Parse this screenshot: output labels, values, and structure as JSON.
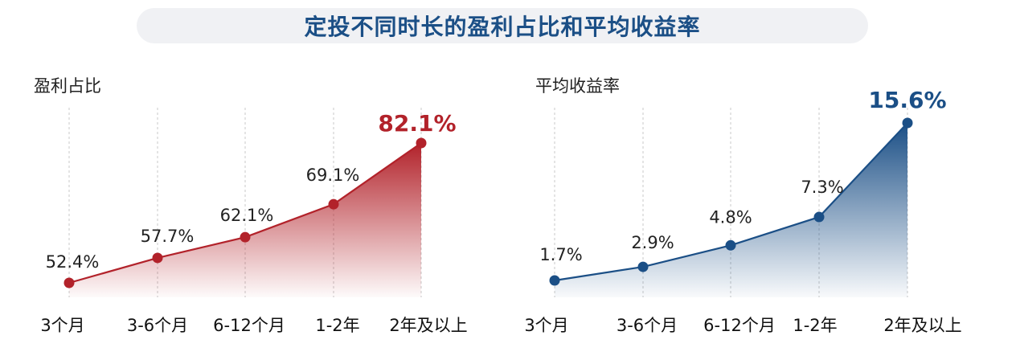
{
  "header": {
    "title": "定投不同时长的盈利占比和平均收益率"
  },
  "colors": {
    "title": "#1b4f86",
    "title_bg": "#f0f1f4",
    "left_series": "#b2222a",
    "right_series": "#1b4f86",
    "gridline": "#c8c8c8"
  },
  "chart_data": [
    {
      "type": "area",
      "title": "盈利占比",
      "categories": [
        "3个月",
        "3-6个月",
        "6-12个月",
        "1-2年",
        "2年及以上"
      ],
      "series": [
        {
          "values": [
            52.4,
            57.7,
            62.1,
            69.1,
            82.1
          ],
          "labels": [
            "52.4%",
            "57.7%",
            "62.1%",
            "69.1%",
            "82.1%"
          ],
          "highlight_last": true
        }
      ],
      "grid": "vertical-dashed"
    },
    {
      "type": "area",
      "title": "平均收益率",
      "categories": [
        "3个月",
        "3-6个月",
        "6-12个月",
        "1-2年",
        "2年及以上"
      ],
      "series": [
        {
          "values": [
            1.7,
            2.9,
            4.8,
            7.3,
            15.6
          ],
          "labels": [
            "1.7%",
            "2.9%",
            "4.8%",
            "7.3%",
            "15.6%"
          ],
          "highlight_last": true
        }
      ],
      "grid": "vertical-dashed"
    }
  ]
}
